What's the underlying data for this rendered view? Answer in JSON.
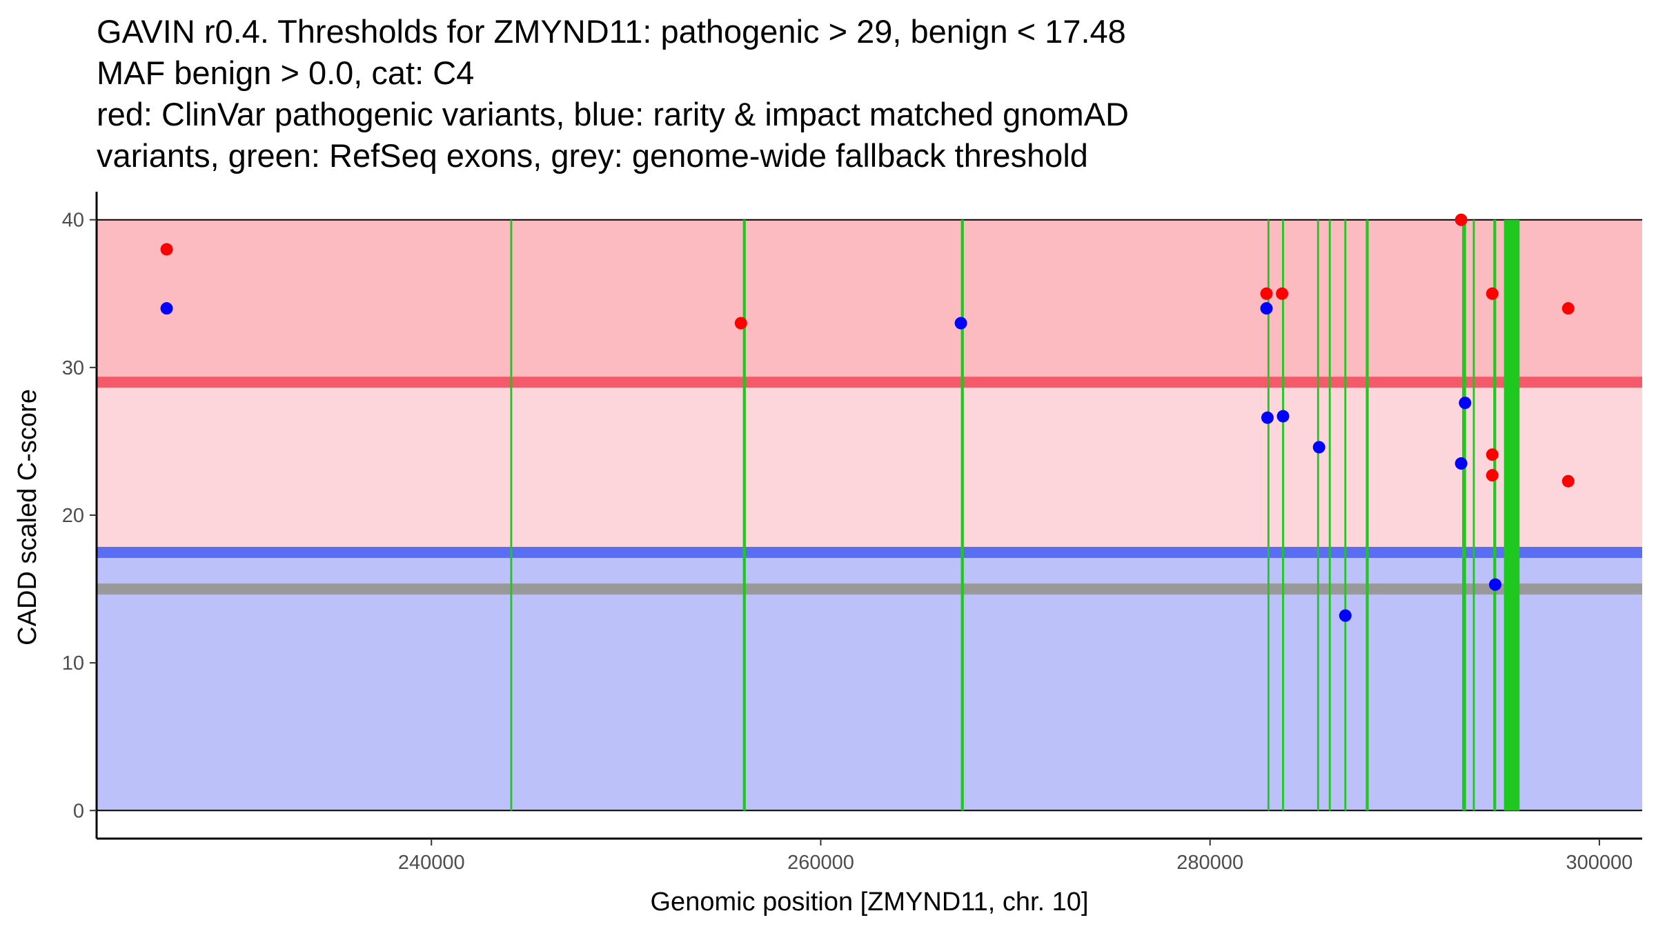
{
  "chart_data": {
    "type": "scatter",
    "title_lines": [
      "GAVIN r0.4. Thresholds for ZMYND11: pathogenic > 29, benign < 17.48",
      "MAF benign > 0.0, cat: C4",
      "red: ClinVar pathogenic variants, blue: rarity & impact matched gnomAD",
      "variants, green: RefSeq exons, grey: genome-wide fallback threshold"
    ],
    "xlabel": "Genomic position [ZMYND11, chr. 10]",
    "ylabel": "CADD scaled C-score",
    "xlim": [
      222800,
      302200
    ],
    "ylim": [
      -1.9,
      41.9
    ],
    "x_ticks": [
      240000,
      260000,
      280000,
      300000
    ],
    "x_tick_labels": [
      "240000",
      "260000",
      "280000",
      "300000"
    ],
    "y_ticks": [
      0,
      10,
      20,
      30,
      40
    ],
    "y_tick_labels": [
      "0",
      "10",
      "20",
      "30",
      "40"
    ],
    "thresholds": {
      "pathogenic": 29,
      "benign": 17.48,
      "genome_wide_fallback": 15
    },
    "zones": [
      {
        "name": "pathogenic-zone",
        "from": 29,
        "to": 40,
        "color": "#fcbbc1"
      },
      {
        "name": "intermediate-zone",
        "from": 17.48,
        "to": 29,
        "color": "#fdd6db"
      },
      {
        "name": "benign-zone",
        "from": 0,
        "to": 17.48,
        "color": "#bcc1fa"
      }
    ],
    "threshold_lines": [
      {
        "name": "pathogenic-threshold-line",
        "y": 29,
        "color": "#f45a69"
      },
      {
        "name": "benign-threshold-line",
        "y": 17.48,
        "color": "#5a6ef4"
      },
      {
        "name": "fallback-threshold-line",
        "y": 15,
        "color": "#999999"
      }
    ],
    "exon_color": "#1ec81e",
    "exons": [
      {
        "start": 244050,
        "end": 244150
      },
      {
        "start": 256000,
        "end": 256150
      },
      {
        "start": 267200,
        "end": 267350
      },
      {
        "start": 282950,
        "end": 283050
      },
      {
        "start": 283700,
        "end": 283800
      },
      {
        "start": 285500,
        "end": 285600
      },
      {
        "start": 286100,
        "end": 286200
      },
      {
        "start": 286900,
        "end": 287000
      },
      {
        "start": 288000,
        "end": 288150
      },
      {
        "start": 292950,
        "end": 293150
      },
      {
        "start": 293500,
        "end": 293600
      },
      {
        "start": 294550,
        "end": 294700
      },
      {
        "start": 295100,
        "end": 295900
      }
    ],
    "series": [
      {
        "name": "ClinVar pathogenic variants",
        "color": "#ff0000",
        "points": [
          {
            "x": 226400,
            "y": 38
          },
          {
            "x": 255900,
            "y": 33
          },
          {
            "x": 282900,
            "y": 35
          },
          {
            "x": 283700,
            "y": 35
          },
          {
            "x": 292900,
            "y": 40
          },
          {
            "x": 294500,
            "y": 35
          },
          {
            "x": 294500,
            "y": 24.1
          },
          {
            "x": 294500,
            "y": 22.7
          },
          {
            "x": 298400,
            "y": 34
          },
          {
            "x": 298400,
            "y": 22.3
          }
        ]
      },
      {
        "name": "rarity & impact matched gnomAD variants",
        "color": "#0000ff",
        "points": [
          {
            "x": 226400,
            "y": 34
          },
          {
            "x": 267200,
            "y": 33
          },
          {
            "x": 282900,
            "y": 34
          },
          {
            "x": 282950,
            "y": 26.6
          },
          {
            "x": 283750,
            "y": 26.7
          },
          {
            "x": 285600,
            "y": 24.6
          },
          {
            "x": 286950,
            "y": 13.2
          },
          {
            "x": 292900,
            "y": 23.5
          },
          {
            "x": 293100,
            "y": 27.6
          },
          {
            "x": 294650,
            "y": 15.3
          }
        ]
      }
    ]
  }
}
